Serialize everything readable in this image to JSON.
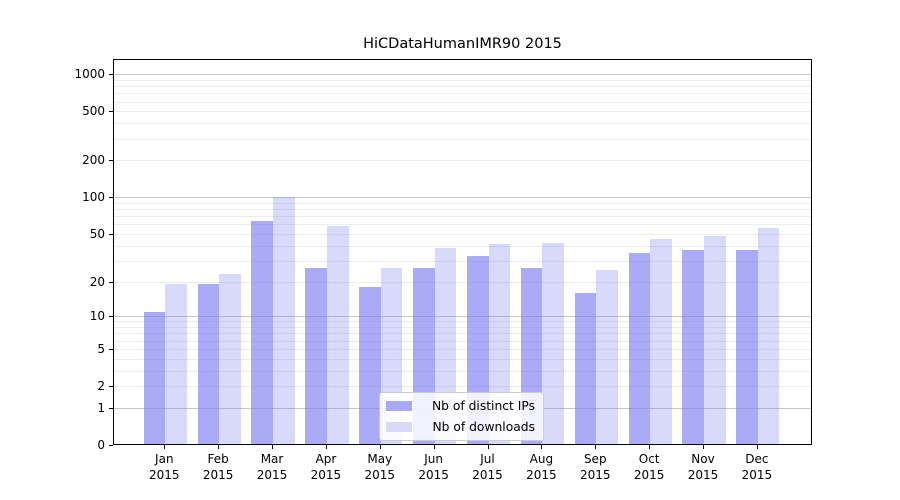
{
  "title": "HiCDataHumanIMR90 2015",
  "legend": {
    "items": [
      {
        "label": "Nb of distinct IPs",
        "color": "#a9a9f6"
      },
      {
        "label": "Nb of downloads",
        "color": "#d9d9fb"
      }
    ]
  },
  "colors": {
    "bar_fill_base": "#7878f0",
    "ips_bar_rgba": "rgba(120,120,240,0.63)",
    "downloads_bar_rgba": "rgba(120,120,240,0.28)",
    "grid_major": "#c6c6c6",
    "grid_minor": "#ececec",
    "axis": "#000000"
  },
  "chart_data": {
    "type": "bar",
    "title": "HiCDataHumanIMR90 2015",
    "categories": [
      "Jan 2015",
      "Feb 2015",
      "Mar 2015",
      "Apr 2015",
      "May 2015",
      "Jun 2015",
      "Jul 2015",
      "Aug 2015",
      "Sep 2015",
      "Oct 2015",
      "Nov 2015",
      "Dec 2015"
    ],
    "series": [
      {
        "name": "Nb of distinct IPs",
        "values": [
          11,
          19,
          64,
          26,
          18,
          26,
          33,
          26,
          16,
          35,
          37,
          37
        ]
      },
      {
        "name": "Nb of downloads",
        "values": [
          19,
          23,
          100,
          58,
          26,
          38,
          41,
          42,
          25,
          45,
          48,
          56
        ]
      }
    ],
    "xlabel": "",
    "ylabel": "",
    "yscale": "log(1+y)",
    "yticks": [
      0,
      1,
      2,
      5,
      10,
      20,
      50,
      100,
      200,
      500,
      1000
    ],
    "ylim": [
      0,
      1330
    ],
    "grid": "horizontal, major and minor",
    "legend_position": "inside lower-center"
  }
}
